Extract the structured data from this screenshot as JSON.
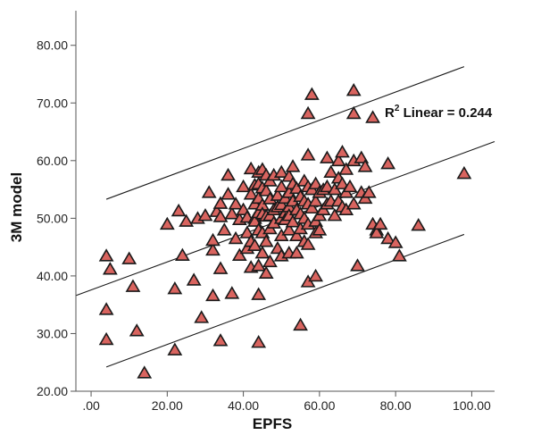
{
  "chart_data": {
    "type": "scatter",
    "xlabel": "EPFS",
    "ylabel": "3M model",
    "xlim": [
      -4,
      106
    ],
    "ylim": [
      20,
      86
    ],
    "x_ticks": [
      0,
      20,
      40,
      60,
      80,
      100
    ],
    "x_tick_labels": [
      ".00",
      "20.00",
      "40.00",
      "60.00",
      "80.00",
      "100.00"
    ],
    "y_ticks": [
      20,
      30,
      40,
      50,
      60,
      70,
      80
    ],
    "y_tick_labels": [
      "20.00",
      "30.00",
      "40.00",
      "50.00",
      "60.00",
      "70.00",
      "80.00"
    ],
    "grid": false,
    "annotation": {
      "prefix": "R",
      "superscript": "2",
      "text": " Linear = 0.244"
    },
    "colors": {
      "marker_fill": "#d9645f",
      "marker_stroke": "#1a1a1a",
      "line": "#1a1a1a"
    },
    "fit_lines": [
      {
        "role": "upper",
        "x": [
          4,
          98
        ],
        "y": [
          53.3,
          76.3
        ]
      },
      {
        "role": "fit",
        "x": [
          -4,
          106
        ],
        "y": [
          36.6,
          63.3
        ]
      },
      {
        "role": "lower",
        "x": [
          4,
          98
        ],
        "y": [
          24.2,
          47.2
        ]
      }
    ],
    "points": [
      [
        4,
        43.5
      ],
      [
        5,
        41.2
      ],
      [
        4,
        34.2
      ],
      [
        4,
        29
      ],
      [
        10,
        43
      ],
      [
        11,
        38.2
      ],
      [
        12,
        30.5
      ],
      [
        14,
        23.2
      ],
      [
        20,
        49
      ],
      [
        22,
        37.8
      ],
      [
        22,
        27.2
      ],
      [
        23,
        51.3
      ],
      [
        24,
        43.6
      ],
      [
        25,
        49.5
      ],
      [
        27,
        39.3
      ],
      [
        28,
        50
      ],
      [
        29,
        32.8
      ],
      [
        30,
        50.5
      ],
      [
        31,
        54.5
      ],
      [
        32,
        36.6
      ],
      [
        32,
        44.5
      ],
      [
        32,
        46.2
      ],
      [
        33,
        51.2
      ],
      [
        34,
        52.6
      ],
      [
        34,
        50.3
      ],
      [
        34,
        41.3
      ],
      [
        34,
        28.8
      ],
      [
        35,
        48
      ],
      [
        36,
        57.5
      ],
      [
        36,
        54.2
      ],
      [
        37,
        50.8
      ],
      [
        37,
        37
      ],
      [
        38,
        46.5
      ],
      [
        38,
        52.5
      ],
      [
        39,
        43.6
      ],
      [
        39,
        49.8
      ],
      [
        40,
        55.5
      ],
      [
        40,
        51.5
      ],
      [
        41,
        47.5
      ],
      [
        41,
        44.8
      ],
      [
        41,
        50.2
      ],
      [
        42,
        58.6
      ],
      [
        42,
        54.2
      ],
      [
        42,
        46
      ],
      [
        42,
        41.5
      ],
      [
        43,
        55.8
      ],
      [
        43,
        52.5
      ],
      [
        43,
        50
      ],
      [
        43,
        49.5
      ],
      [
        43,
        45.3
      ],
      [
        44,
        58
      ],
      [
        44,
        56
      ],
      [
        44,
        53.5
      ],
      [
        44,
        51
      ],
      [
        44,
        48
      ],
      [
        44,
        41.8
      ],
      [
        44,
        36.8
      ],
      [
        44,
        28.5
      ],
      [
        45,
        58.5
      ],
      [
        45,
        55.3
      ],
      [
        45,
        52.3
      ],
      [
        45,
        50.8
      ],
      [
        45,
        47.5
      ],
      [
        45,
        44
      ],
      [
        46,
        57.5
      ],
      [
        46,
        54.8
      ],
      [
        46,
        50.4
      ],
      [
        46,
        46
      ],
      [
        46,
        40.5
      ],
      [
        47,
        56.5
      ],
      [
        47,
        53.4
      ],
      [
        47,
        50.5
      ],
      [
        47,
        48.2
      ],
      [
        47,
        42.5
      ],
      [
        48,
        51.5
      ],
      [
        48,
        49.2
      ],
      [
        48,
        57.5
      ],
      [
        49,
        54
      ],
      [
        49,
        52
      ],
      [
        49,
        44.8
      ],
      [
        50,
        58
      ],
      [
        50,
        55.5
      ],
      [
        50,
        52.4
      ],
      [
        50,
        50
      ],
      [
        50,
        47
      ],
      [
        50,
        43.5
      ],
      [
        51,
        53.5
      ],
      [
        51,
        51
      ],
      [
        51,
        49.8
      ],
      [
        52,
        57.3
      ],
      [
        52,
        54.5
      ],
      [
        52,
        52
      ],
      [
        52,
        50.5
      ],
      [
        52,
        48
      ],
      [
        52,
        44
      ],
      [
        53,
        56
      ],
      [
        53,
        53
      ],
      [
        53,
        49.4
      ],
      [
        53,
        59
      ],
      [
        54,
        55.2
      ],
      [
        54,
        51.5
      ],
      [
        54,
        47
      ],
      [
        54,
        44
      ],
      [
        55,
        53.8
      ],
      [
        55,
        50.8
      ],
      [
        55,
        48.2
      ],
      [
        55,
        31.5
      ],
      [
        56,
        56.5
      ],
      [
        56,
        53
      ],
      [
        56,
        50
      ],
      [
        56,
        46
      ],
      [
        57,
        61
      ],
      [
        57,
        55.5
      ],
      [
        57,
        52.5
      ],
      [
        57,
        49
      ],
      [
        57,
        45.5
      ],
      [
        57,
        39
      ],
      [
        57,
        68.2
      ],
      [
        58,
        71.5
      ],
      [
        58,
        55
      ],
      [
        58,
        51.8
      ],
      [
        59,
        56
      ],
      [
        59,
        53
      ],
      [
        59,
        49.5
      ],
      [
        59,
        47.5
      ],
      [
        59,
        40
      ],
      [
        60,
        54.5
      ],
      [
        60,
        50.5
      ],
      [
        60,
        48
      ],
      [
        61,
        55
      ],
      [
        61,
        51.5
      ],
      [
        62,
        60.5
      ],
      [
        62,
        55.5
      ],
      [
        62,
        52.5
      ],
      [
        63,
        58
      ],
      [
        63,
        53
      ],
      [
        64,
        55
      ],
      [
        64,
        50.5
      ],
      [
        65,
        60
      ],
      [
        65,
        57
      ],
      [
        65,
        53
      ],
      [
        66,
        61.5
      ],
      [
        66,
        56
      ],
      [
        66,
        52
      ],
      [
        67,
        58.5
      ],
      [
        67,
        54.5
      ],
      [
        67,
        51.5
      ],
      [
        68,
        55.5
      ],
      [
        69,
        72.2
      ],
      [
        69,
        68.2
      ],
      [
        69,
        60
      ],
      [
        69,
        52.5
      ],
      [
        70,
        41.8
      ],
      [
        71,
        54.5
      ],
      [
        71,
        60.5
      ],
      [
        72,
        59
      ],
      [
        72,
        53.5
      ],
      [
        73,
        54.5
      ],
      [
        74,
        67.5
      ],
      [
        74,
        49
      ],
      [
        75,
        48
      ],
      [
        75,
        47.5
      ],
      [
        76,
        49
      ],
      [
        78,
        59.5
      ],
      [
        78,
        46.5
      ],
      [
        80,
        45.8
      ],
      [
        81,
        43.5
      ],
      [
        86,
        48.8
      ],
      [
        98,
        57.8
      ]
    ]
  }
}
